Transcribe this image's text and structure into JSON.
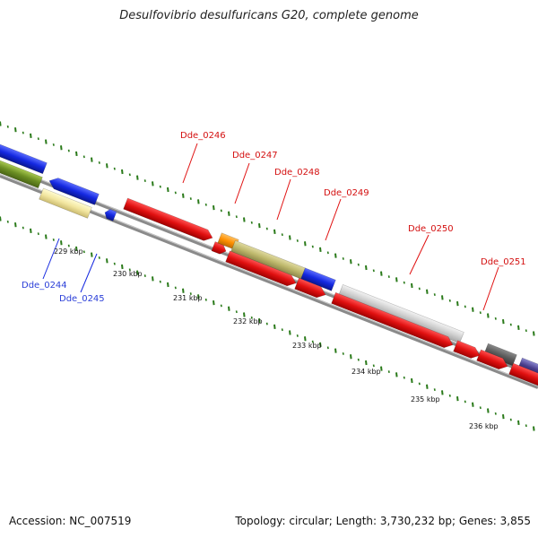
{
  "title": "Desulfovibrio desulfuricans G20, complete genome",
  "footer": {
    "accession": "Accession: NC_007519",
    "summary": "Topology: circular; Length: 3,730,232 bp; Genes: 3,855"
  },
  "ticks": [
    "229 kbp",
    "230 kbp",
    "231 kbp",
    "232 kbp",
    "233 kbp",
    "234 kbp",
    "235 kbp",
    "236 kbp"
  ],
  "genes": [
    {
      "id": "Dde_0244",
      "color": "#2b3fd8"
    },
    {
      "id": "Dde_0245",
      "color": "#2b3fd8"
    },
    {
      "id": "Dde_0246",
      "color": "#d41010"
    },
    {
      "id": "Dde_0247",
      "color": "#d41010"
    },
    {
      "id": "Dde_0248",
      "color": "#d41010"
    },
    {
      "id": "Dde_0249",
      "color": "#d41010"
    },
    {
      "id": "Dde_0250",
      "color": "#d41010"
    },
    {
      "id": "Dde_0251",
      "color": "#d41010"
    }
  ],
  "colors": {
    "forward_cds": "#e01414",
    "reverse_cds": "#1428e0",
    "backbone": "#888888",
    "gc_ticks": "#2a7a1a"
  }
}
